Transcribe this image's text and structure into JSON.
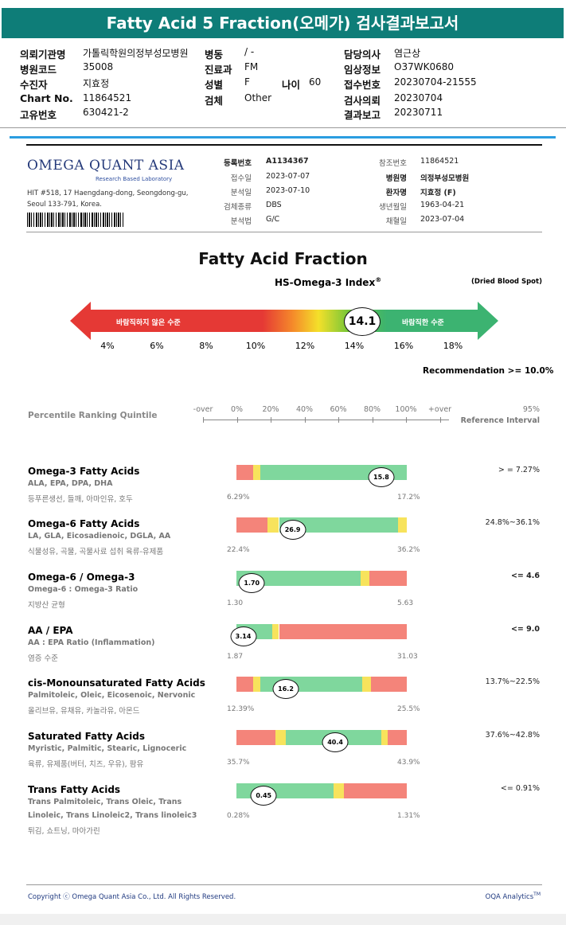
{
  "title": "Fatty Acid 5 Fraction(오메가) 검사결과보고서",
  "header": {
    "col1": [
      {
        "label": "의뢰기관명",
        "value": "가톨릭학원의정부성모병원"
      },
      {
        "label": "병원코드",
        "value": "35008"
      },
      {
        "label": "수진자",
        "value": "지효정"
      },
      {
        "label": "Chart No.",
        "value": "11864521"
      },
      {
        "label": "고유번호",
        "value": "630421-2"
      }
    ],
    "col2": [
      {
        "label": "병동",
        "value": "/ -"
      },
      {
        "label": "진료과",
        "value": "FM"
      },
      {
        "label": "성별",
        "value": "F"
      },
      {
        "label": "검체",
        "value": "Other"
      }
    ],
    "age": {
      "label": "나이",
      "value": "60"
    },
    "col3": [
      {
        "label": "담당의사",
        "value": "염근상"
      },
      {
        "label": "임상정보",
        "value": "O37WK0680"
      },
      {
        "label": "접수번호",
        "value": "20230704-21555"
      },
      {
        "label": "검사의뢰",
        "value": "20230704"
      },
      {
        "label": "결과보고",
        "value": "20230711"
      }
    ]
  },
  "lab": {
    "logo": "OMEGA QUANT ASIA",
    "logo_sub": "Research Based Laboratory",
    "address1": "HIT #518, 17 Haengdang-dong, Seongdong-gu,",
    "address2": "Seoul 133-791, Korea.",
    "info_left": [
      {
        "label": "등록번호",
        "value": "A1134367",
        "bold": true
      },
      {
        "label": "접수일",
        "value": "2023-07-07"
      },
      {
        "label": "분석일",
        "value": "2023-07-10"
      },
      {
        "label": "검체종류",
        "value": "DBS"
      },
      {
        "label": "분석법",
        "value": "G/C"
      }
    ],
    "info_right": [
      {
        "label": "참조번호",
        "value": "11864521"
      },
      {
        "label": "병원명",
        "value": "의정부성모병원",
        "bold": true
      },
      {
        "label": "환자명",
        "value": "지효정 (F)",
        "bold": true
      },
      {
        "label": "생년월일",
        "value": "1963-04-21"
      },
      {
        "label": "채혈일",
        "value": "2023-07-04"
      }
    ]
  },
  "index": {
    "main_title": "Fatty Acid Fraction",
    "sub_title": "HS-Omega-3 Index",
    "sub_title_mark": "®",
    "sample": "(Dried Blood Spot)",
    "bad_label": "바람직하지 않은 수준",
    "good_label": "바람직한 수준",
    "ticks": [
      "4%",
      "6%",
      "8%",
      "10%",
      "12%",
      "14%",
      "16%",
      "18%"
    ],
    "value": "14.1",
    "recommendation": "Recommendation  >= 10.0%"
  },
  "ranking": {
    "label": "Percentile Ranking Quintile",
    "scale": [
      "-over",
      "0%",
      "20%",
      "40%",
      "60%",
      "80%",
      "100%",
      "+over"
    ],
    "ref_title1": "95%",
    "ref_title2": "Reference Interval"
  },
  "results": [
    {
      "name": "Omega-3 Fatty Acids",
      "sub": "ALA, EPA, DPA, DHA",
      "kr": "등푸른생선, 들깨, 아마인유, 호두",
      "min": "6.29%",
      "max": "17.2%",
      "value": "15.8",
      "ref": "> = 7.27%",
      "refbold": false,
      "pos": 0.85,
      "segs": [
        [
          "#f4847a",
          0,
          0.1
        ],
        [
          "#f7e35c",
          0.1,
          0.14
        ],
        [
          "#7fd79d",
          0.14,
          1
        ]
      ]
    },
    {
      "name": "Omega-6 Fatty Acids",
      "sub": "LA, GLA, Eicosadienoic, DGLA, AA",
      "kr": "식물성유, 곡물, 곡물사료 섭취 육류-유제품",
      "min": "22.4%",
      "max": "36.2%",
      "value": "26.9",
      "ref": "24.8%~36.1%",
      "refbold": false,
      "pos": 0.33,
      "segs": [
        [
          "#f4847a",
          0,
          0.18
        ],
        [
          "#f7e35c",
          0.18,
          0.25
        ],
        [
          "#7fd79d",
          0.25,
          0.95
        ],
        [
          "#f7e35c",
          0.95,
          1
        ]
      ]
    },
    {
      "name": "Omega-6 / Omega-3",
      "sub": "Omega-6 : Omega-3 Ratio",
      "kr": "지방산 균형",
      "min": "1.30",
      "max": "5.63",
      "value": "1.70",
      "ref": "<= 4.6",
      "refbold": true,
      "pos": 0.09,
      "segs": [
        [
          "#7fd79d",
          0,
          0.73
        ],
        [
          "#f7e35c",
          0.73,
          0.78
        ],
        [
          "#f4847a",
          0.78,
          1
        ]
      ]
    },
    {
      "name": "AA / EPA",
      "sub": "AA : EPA Ratio (Inflammation)",
      "kr": "염증 수준",
      "min": "1.87",
      "max": "31.03",
      "value": "3.14",
      "ref": "<= 9.0",
      "refbold": true,
      "pos": 0.04,
      "segs": [
        [
          "#7fd79d",
          0,
          0.21
        ],
        [
          "#f7e35c",
          0.21,
          0.25
        ],
        [
          "#f4847a",
          0.25,
          1
        ]
      ]
    },
    {
      "name": "cis-Monounsaturated Fatty Acids",
      "sub": "Palmitoleic, Oleic, Eicosenoic, Nervonic",
      "kr": "올리브유, 유채유, 카놀라유, 아몬드",
      "min": "12.39%",
      "max": "25.5%",
      "value": "16.2",
      "ref": "13.7%~22.5%",
      "refbold": false,
      "pos": 0.29,
      "segs": [
        [
          "#f4847a",
          0,
          0.1
        ],
        [
          "#f7e35c",
          0.1,
          0.14
        ],
        [
          "#7fd79d",
          0.14,
          0.74
        ],
        [
          "#f7e35c",
          0.74,
          0.79
        ],
        [
          "#f4847a",
          0.79,
          1
        ]
      ]
    },
    {
      "name": "Saturated Fatty Acids",
      "sub": "Myristic, Palmitic, Stearic, Lignoceric",
      "kr": "육류, 유제품(버터, 치즈, 우유), 팜유",
      "min": "35.7%",
      "max": "43.9%",
      "value": "40.4",
      "ref": "37.6%~42.8%",
      "refbold": false,
      "pos": 0.58,
      "segs": [
        [
          "#f4847a",
          0,
          0.23
        ],
        [
          "#f7e35c",
          0.23,
          0.29
        ],
        [
          "#7fd79d",
          0.29,
          0.85
        ],
        [
          "#f7e35c",
          0.85,
          0.89
        ],
        [
          "#f4847a",
          0.89,
          1
        ]
      ]
    },
    {
      "name": "Trans Fatty Acids",
      "sub": "Trans Palmitoleic, Trans Oleic, Trans",
      "sub2": "Linoleic, Trans Linoleic2, Trans linoleic3",
      "kr": "튀김, 쇼트닝, 마아가린",
      "min": "0.28%",
      "max": "1.31%",
      "value": "0.45",
      "ref": "<= 0.91%",
      "refbold": false,
      "pos": 0.16,
      "segs": [
        [
          "#7fd79d",
          0,
          0.57
        ],
        [
          "#f7e35c",
          0.57,
          0.63
        ],
        [
          "#f4847a",
          0.63,
          1
        ]
      ]
    }
  ],
  "footer": {
    "copyright": "Copyright ⓒ Omega Quant Asia Co., Ltd.  All Rights Reserved.",
    "brand": "OQA Analytics",
    "brand_mark": "TM"
  }
}
